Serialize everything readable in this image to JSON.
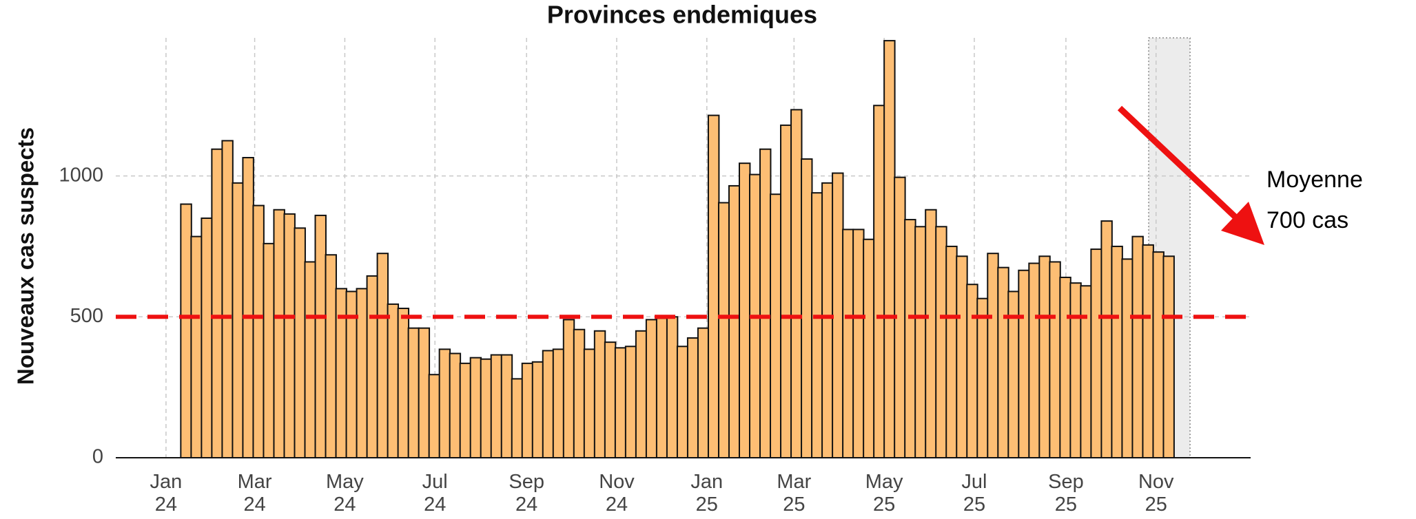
{
  "chart_data": {
    "type": "bar",
    "title": "Provinces endemiques",
    "ylabel": "Nouveaux cas suspects",
    "annotation": "Moyenne 700 cas",
    "color": "#FDBE74",
    "threshold": 500,
    "threshold_color": "#ee1111",
    "shaded_range": [
      665,
      693
    ],
    "grid": true,
    "xlim": [
      -34,
      734
    ],
    "ylim": [
      0,
      1490
    ],
    "yticks": [
      0,
      500,
      1000
    ],
    "xticks": [
      {
        "value": 0,
        "label": "Jan 24"
      },
      {
        "value": 60,
        "label": "Mar 24"
      },
      {
        "value": 121,
        "label": "May 24"
      },
      {
        "value": 182,
        "label": "Jul 24"
      },
      {
        "value": 244,
        "label": "Sep 24"
      },
      {
        "value": 305,
        "label": "Nov 24"
      },
      {
        "value": 366,
        "label": "Jan 25"
      },
      {
        "value": 425,
        "label": "Mar 25"
      },
      {
        "value": 486,
        "label": "May 25"
      },
      {
        "value": 547,
        "label": "Jul 25"
      },
      {
        "value": 609,
        "label": "Sep 25"
      },
      {
        "value": 670,
        "label": "Nov 25"
      }
    ],
    "x": [
      10,
      17,
      24,
      31,
      38,
      45,
      52,
      59,
      66,
      73,
      80,
      87,
      94,
      101,
      108,
      115,
      122,
      129,
      136,
      143,
      150,
      157,
      164,
      171,
      178,
      185,
      192,
      199,
      206,
      213,
      220,
      227,
      234,
      241,
      248,
      255,
      262,
      269,
      276,
      283,
      290,
      297,
      304,
      311,
      318,
      325,
      332,
      339,
      346,
      353,
      360,
      367,
      374,
      381,
      388,
      395,
      402,
      409,
      416,
      423,
      430,
      437,
      444,
      451,
      458,
      465,
      472,
      479,
      486,
      493,
      500,
      507,
      514,
      521,
      528,
      535,
      542,
      549,
      556,
      563,
      570,
      577,
      584,
      591,
      598,
      605,
      612,
      619,
      626,
      633,
      640,
      647,
      654,
      661,
      668,
      675
    ],
    "values": [
      900,
      785,
      850,
      1095,
      1125,
      975,
      1065,
      895,
      760,
      880,
      865,
      815,
      695,
      860,
      720,
      600,
      590,
      600,
      645,
      725,
      545,
      530,
      460,
      460,
      295,
      385,
      370,
      335,
      355,
      350,
      365,
      365,
      280,
      335,
      340,
      380,
      385,
      490,
      455,
      385,
      450,
      410,
      390,
      395,
      450,
      490,
      495,
      500,
      395,
      425,
      460,
      1215,
      905,
      965,
      1045,
      1005,
      1095,
      935,
      1180,
      1235,
      1060,
      940,
      975,
      1010,
      810,
      810,
      775,
      1250,
      1480,
      995,
      845,
      820,
      880,
      820,
      750,
      715,
      615,
      565,
      725,
      675,
      590,
      665,
      690,
      715,
      695,
      640,
      620,
      610,
      740,
      840,
      750,
      705,
      785,
      755,
      730,
      715
    ]
  }
}
